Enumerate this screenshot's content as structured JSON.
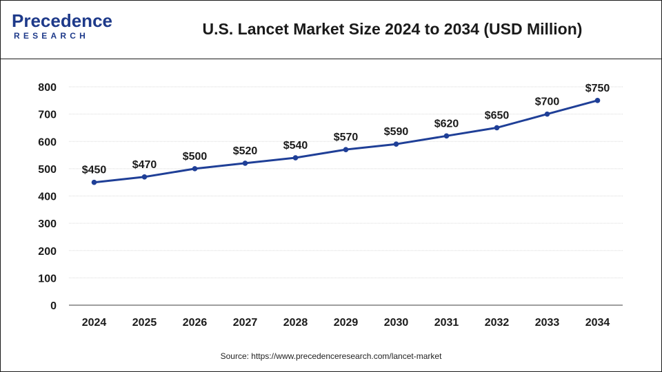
{
  "header": {
    "logo_main": "Precedence",
    "logo_sub": "RESEARCH",
    "title": "U.S. Lancet Market Size 2024 to 2034 (USD Million)"
  },
  "colors": {
    "line": "#1f3f97",
    "gridline": "#d9d9d9",
    "axis": "#7f7f7f",
    "text": "#1a1a1a",
    "brand": "#1e3a8a"
  },
  "chart_data": {
    "type": "line",
    "title": "U.S. Lancet Market Size 2024 to 2034 (USD Million)",
    "xlabel": "",
    "ylabel": "",
    "categories": [
      "2024",
      "2025",
      "2026",
      "2027",
      "2028",
      "2029",
      "2030",
      "2031",
      "2032",
      "2033",
      "2034"
    ],
    "series": [
      {
        "values": [
          450,
          470,
          500,
          520,
          540,
          570,
          590,
          620,
          650,
          700,
          750
        ],
        "labels": [
          "$450",
          "$470",
          "$500",
          "$520",
          "$540",
          "$570",
          "$590",
          "$620",
          "$650",
          "$700",
          "$750"
        ]
      }
    ],
    "ylim": [
      0,
      800
    ],
    "yticks": [
      0,
      100,
      200,
      300,
      400,
      500,
      600,
      700,
      800
    ],
    "grid": true,
    "legend": "none"
  },
  "footer": {
    "source": "Source: https://www.precedenceresearch.com/lancet-market"
  }
}
